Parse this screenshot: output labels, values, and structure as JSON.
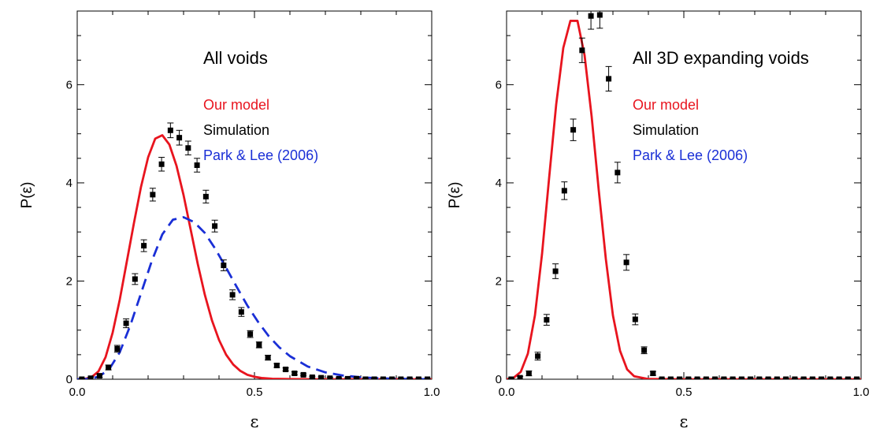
{
  "chart_data": [
    {
      "type": "line",
      "title": "All voids",
      "xlabel": "ε",
      "ylabel": "P(ε)",
      "xlim": [
        0.0,
        1.0
      ],
      "ylim": [
        0,
        7.5
      ],
      "x_ticks": [
        0.0,
        0.5,
        1.0
      ],
      "x_tick_labels": [
        "0.0",
        "0.5",
        "1.0"
      ],
      "y_ticks": [
        0,
        2,
        4,
        6
      ],
      "y_tick_labels": [
        "0",
        "2",
        "4",
        "6"
      ],
      "legend": [
        {
          "label": "Our model",
          "color": "#e8141e"
        },
        {
          "label": "Simulation",
          "color": "#000000"
        },
        {
          "label": "Park & Lee (2006)",
          "color": "#1a2fd6"
        }
      ],
      "legend_placement": "top-right",
      "series": [
        {
          "name": "Our model",
          "kind": "line",
          "color": "#e8141e",
          "x": [
            0.0,
            0.02,
            0.04,
            0.06,
            0.08,
            0.1,
            0.12,
            0.14,
            0.16,
            0.18,
            0.2,
            0.22,
            0.24,
            0.26,
            0.28,
            0.3,
            0.32,
            0.34,
            0.36,
            0.38,
            0.4,
            0.42,
            0.44,
            0.46,
            0.48,
            0.5,
            0.52,
            0.55,
            0.6,
            0.7,
            0.8,
            0.9,
            1.0
          ],
          "y": [
            0.0,
            0.005,
            0.04,
            0.16,
            0.45,
            0.95,
            1.62,
            2.4,
            3.18,
            3.92,
            4.52,
            4.9,
            4.97,
            4.78,
            4.35,
            3.75,
            3.05,
            2.35,
            1.72,
            1.2,
            0.8,
            0.5,
            0.3,
            0.17,
            0.09,
            0.05,
            0.025,
            0.01,
            0.003,
            0.0,
            0.0,
            0.0,
            0.0
          ]
        },
        {
          "name": "Simulation",
          "kind": "points_with_errors",
          "color": "#000000",
          "x": [
            0.013,
            0.038,
            0.063,
            0.088,
            0.113,
            0.138,
            0.163,
            0.188,
            0.213,
            0.238,
            0.263,
            0.288,
            0.313,
            0.338,
            0.363,
            0.388,
            0.413,
            0.438,
            0.463,
            0.488,
            0.513,
            0.538,
            0.563,
            0.588,
            0.613,
            0.638,
            0.663,
            0.688,
            0.713,
            0.738,
            0.763,
            0.788,
            0.813,
            0.838,
            0.863,
            0.888,
            0.913,
            0.938,
            0.963,
            0.988
          ],
          "y": [
            0.0,
            0.02,
            0.07,
            0.24,
            0.62,
            1.14,
            2.04,
            2.72,
            3.76,
            4.38,
            5.07,
            4.92,
            4.71,
            4.36,
            3.72,
            3.12,
            2.32,
            1.72,
            1.37,
            0.92,
            0.7,
            0.44,
            0.28,
            0.2,
            0.12,
            0.09,
            0.04,
            0.03,
            0.02,
            0.01,
            0.01,
            0.01,
            0.0,
            0.0,
            0.0,
            0.0,
            0.0,
            0.0,
            0.0,
            0.0
          ],
          "err": [
            0.02,
            0.02,
            0.03,
            0.05,
            0.07,
            0.09,
            0.11,
            0.12,
            0.13,
            0.14,
            0.15,
            0.15,
            0.14,
            0.14,
            0.13,
            0.12,
            0.11,
            0.1,
            0.09,
            0.07,
            0.06,
            0.05,
            0.04,
            0.03,
            0.03,
            0.02,
            0.02,
            0.02,
            0.02,
            0.02,
            0.02,
            0.02,
            0.02,
            0.02,
            0.02,
            0.02,
            0.02,
            0.02,
            0.02,
            0.02
          ]
        },
        {
          "name": "Park & Lee (2006)",
          "kind": "dashed-line",
          "color": "#1a2fd6",
          "x": [
            0.0,
            0.03,
            0.06,
            0.09,
            0.12,
            0.15,
            0.18,
            0.21,
            0.24,
            0.27,
            0.3,
            0.33,
            0.36,
            0.39,
            0.42,
            0.45,
            0.48,
            0.51,
            0.54,
            0.57,
            0.6,
            0.65,
            0.7,
            0.75,
            0.8,
            0.85,
            0.9,
            0.95,
            1.0
          ],
          "y": [
            0.0,
            0.005,
            0.05,
            0.2,
            0.55,
            1.1,
            1.75,
            2.4,
            2.95,
            3.25,
            3.3,
            3.2,
            2.98,
            2.65,
            2.27,
            1.88,
            1.5,
            1.17,
            0.88,
            0.65,
            0.47,
            0.26,
            0.14,
            0.075,
            0.04,
            0.02,
            0.01,
            0.005,
            0.0
          ]
        }
      ]
    },
    {
      "type": "line",
      "title": "All 3D expanding voids",
      "xlabel": "ε",
      "ylabel": "P(ε)",
      "xlim": [
        0.0,
        1.0
      ],
      "ylim": [
        0,
        7.5
      ],
      "x_ticks": [
        0.0,
        0.5,
        1.0
      ],
      "x_tick_labels": [
        "0.0",
        "0.5",
        "1.0"
      ],
      "y_ticks": [
        0,
        2,
        4,
        6
      ],
      "y_tick_labels": [
        "0",
        "2",
        "4",
        "6"
      ],
      "legend": [
        {
          "label": "Our model",
          "color": "#e8141e"
        },
        {
          "label": "Simulation",
          "color": "#000000"
        },
        {
          "label": "Park & Lee (2006)",
          "color": "#1a2fd6"
        }
      ],
      "legend_placement": "top-right",
      "series": [
        {
          "name": "Our model",
          "kind": "line",
          "color": "#e8141e",
          "x": [
            0.0,
            0.02,
            0.04,
            0.06,
            0.08,
            0.1,
            0.12,
            0.14,
            0.16,
            0.18,
            0.2,
            0.22,
            0.24,
            0.26,
            0.28,
            0.3,
            0.32,
            0.34,
            0.36,
            0.4,
            0.5,
            0.7,
            1.0
          ],
          "y": [
            0.0,
            0.03,
            0.15,
            0.52,
            1.3,
            2.55,
            4.1,
            5.6,
            6.75,
            7.3,
            7.3,
            6.6,
            5.35,
            3.85,
            2.45,
            1.3,
            0.58,
            0.2,
            0.06,
            0.005,
            0.0,
            0.0,
            0.0
          ]
        },
        {
          "name": "Simulation",
          "kind": "points_with_errors",
          "color": "#000000",
          "x": [
            0.013,
            0.038,
            0.063,
            0.088,
            0.113,
            0.138,
            0.163,
            0.188,
            0.213,
            0.238,
            0.263,
            0.288,
            0.313,
            0.338,
            0.363,
            0.388,
            0.413,
            0.438,
            0.463,
            0.488,
            0.513,
            0.538,
            0.563,
            0.588,
            0.613,
            0.638,
            0.663,
            0.688,
            0.713,
            0.738,
            0.763,
            0.788,
            0.813,
            0.838,
            0.863,
            0.888,
            0.913,
            0.938,
            0.963,
            0.988
          ],
          "y": [
            0.0,
            0.03,
            0.12,
            0.47,
            1.21,
            2.2,
            3.84,
            5.08,
            6.7,
            7.4,
            7.42,
            6.12,
            4.21,
            2.38,
            1.22,
            0.59,
            0.12,
            0.0,
            0.0,
            0.0,
            0.0,
            0.0,
            0.0,
            0.0,
            0.0,
            0.0,
            0.0,
            0.0,
            0.0,
            0.0,
            0.0,
            0.0,
            0.0,
            0.0,
            0.0,
            0.0,
            0.0,
            0.0,
            0.0,
            0.0
          ],
          "err": [
            0.02,
            0.03,
            0.05,
            0.08,
            0.11,
            0.15,
            0.18,
            0.22,
            0.25,
            0.27,
            0.27,
            0.25,
            0.21,
            0.16,
            0.11,
            0.07,
            0.04,
            0.02,
            0.02,
            0.02,
            0.02,
            0.02,
            0.02,
            0.02,
            0.02,
            0.02,
            0.02,
            0.02,
            0.02,
            0.02,
            0.02,
            0.02,
            0.02,
            0.02,
            0.02,
            0.02,
            0.02,
            0.02,
            0.02,
            0.02
          ]
        }
      ]
    }
  ]
}
